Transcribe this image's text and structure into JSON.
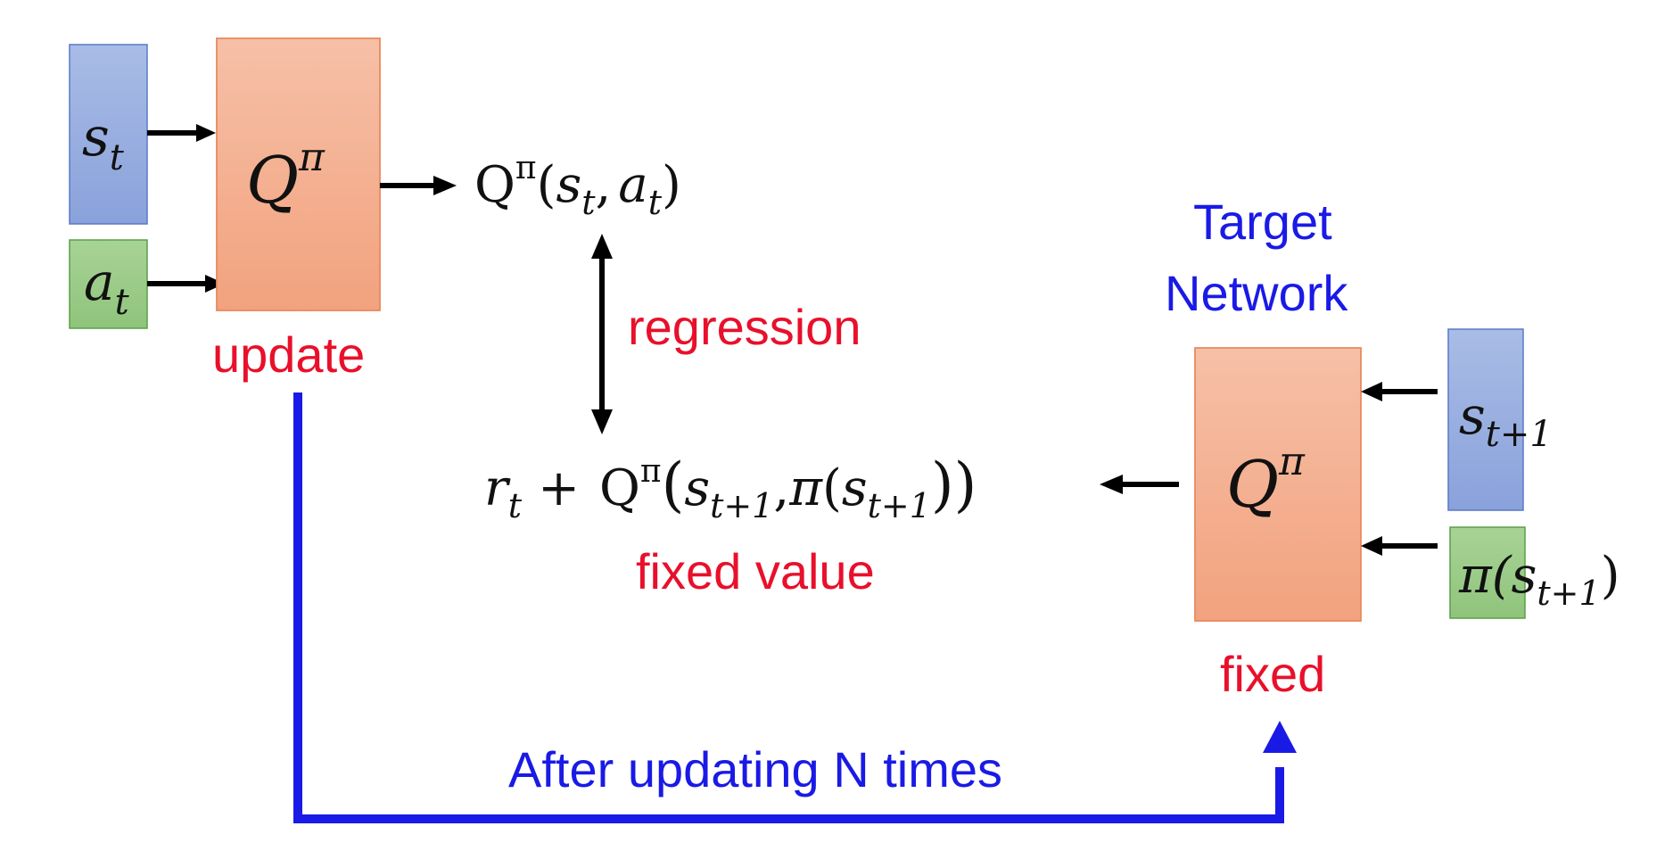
{
  "online_network": {
    "label": "Q",
    "label_sup": "π",
    "status_label": "update",
    "input_state": {
      "base": "s",
      "sub": "t"
    },
    "input_action": {
      "base": "a",
      "sub": "t"
    }
  },
  "online_output": {
    "prefix": "Q",
    "sup": "π",
    "open": "(",
    "s_base": "s",
    "s_sub": "t",
    "comma": ",",
    "a_base": "a",
    "a_sub": "t",
    "close": ")"
  },
  "regression_label": "regression",
  "target_expression": {
    "r_base": "r",
    "r_sub": "t",
    "plus": "+",
    "q": "Q",
    "q_sup": "π",
    "open": "(",
    "s_base": "s",
    "s_sub": "t+1",
    "comma": ",",
    "pi": "π",
    "open2": "(",
    "s2_base": "s",
    "s2_sub": "t+1",
    "close": "))"
  },
  "fixed_value_label": "fixed value",
  "target_network": {
    "title_line1": "Target",
    "title_line2": "Network",
    "label": "Q",
    "label_sup": "π",
    "status_label": "fixed",
    "input_state": {
      "base": "s",
      "sub": "t+1"
    },
    "input_policy": {
      "prefix": "π(",
      "base": "s",
      "sub": "t+1",
      "suffix": ")"
    }
  },
  "sync_label": "After updating N times",
  "colors": {
    "network_fill_top": "#f6c0a7",
    "network_fill_bottom": "#f2a27e",
    "network_stroke": "#e88a5e",
    "state_fill": "#9bb0e0",
    "state_stroke": "#5a78c8",
    "action_fill": "#9ccb8a",
    "action_stroke": "#5a9e48",
    "red": "#e8102b",
    "blue": "#1a1ae6",
    "arrow": "#000000"
  }
}
